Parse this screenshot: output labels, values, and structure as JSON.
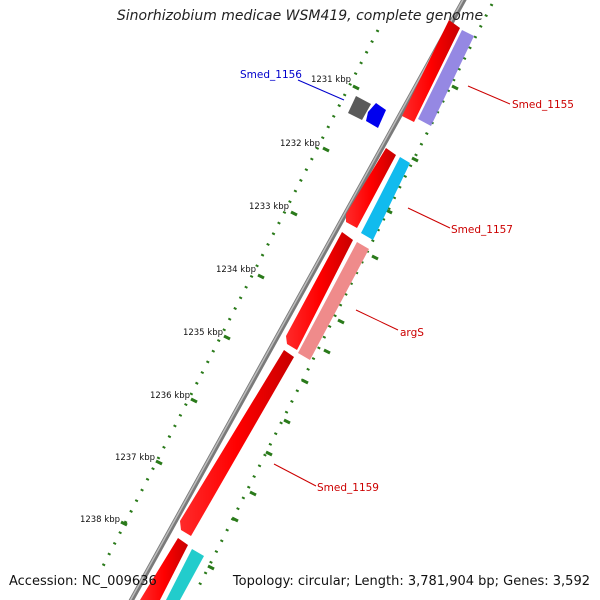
{
  "title": "Sinorhizobium medicae WSM419, complete genome",
  "footer": {
    "accession_label": "Accession: NC_009636",
    "summary": "Topology: circular; Length: 3,781,904 bp; Genes: 3,592"
  },
  "ticks": [
    "1231 kbp",
    "1232 kbp",
    "1233 kbp",
    "1234 kbp",
    "1235 kbp",
    "1236 kbp",
    "1237 kbp",
    "1238 kbp"
  ],
  "features": [
    {
      "name": "Smed_1155",
      "label_color": "#cc0000",
      "gene_color": "#ff0000",
      "cds_color": "#8877dd"
    },
    {
      "name": "Smed_1156",
      "label_color": "#0000cc",
      "gene_color": "#555555",
      "cds_color": "#0000ee"
    },
    {
      "name": "Smed_1157",
      "label_color": "#cc0000",
      "gene_color": "#ff0000",
      "cds_color": "#11bbee"
    },
    {
      "name": "argS",
      "label_color": "#cc0000",
      "gene_color": "#ff0000",
      "cds_color": "#ee8888"
    },
    {
      "name": "Smed_1159",
      "label_color": "#cc0000",
      "gene_color": "#ff0000",
      "cds_color": "#22cccc"
    }
  ],
  "colors": {
    "backbone": "#888888",
    "dotted_track": "#2a7a1a",
    "tick_mark": "#2a7a1a"
  }
}
